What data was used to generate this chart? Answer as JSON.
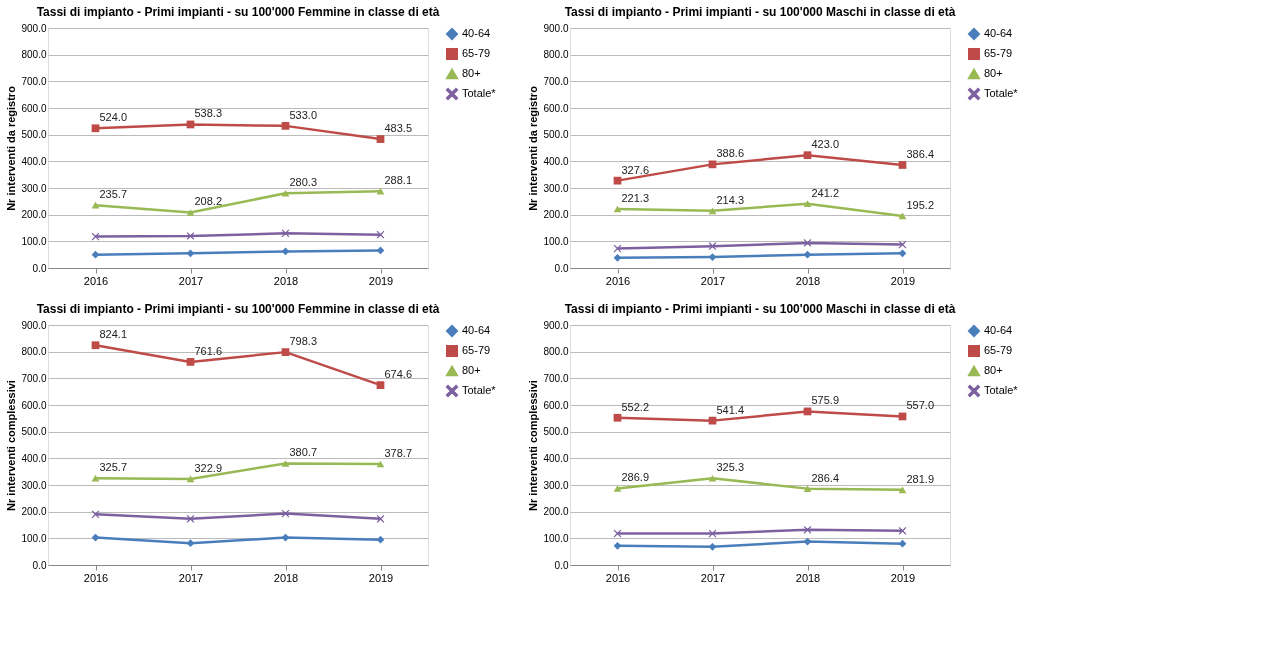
{
  "chart_data": [
    {
      "type": "line",
      "title": "Tassi di impianto - Primi impianti - su 100'000 Femmine in classe di età",
      "ylabel": "Nr interventi da registro",
      "categories": [
        "2016",
        "2017",
        "2018",
        "2019"
      ],
      "ylim": [
        0,
        900
      ],
      "yticks": [
        {
          "value": 0,
          "label": "0.0"
        },
        {
          "value": 100,
          "label": "100.0"
        },
        {
          "value": 200,
          "label": "200.0"
        },
        {
          "value": 300,
          "label": "300.0"
        },
        {
          "value": 400,
          "label": "400.0"
        },
        {
          "value": 500,
          "label": "500.0"
        },
        {
          "value": 600,
          "label": "600.0"
        },
        {
          "value": 700,
          "label": "700.0"
        },
        {
          "value": 800,
          "label": "800.0"
        },
        {
          "value": 900,
          "label": "900.0"
        }
      ],
      "grid": "y",
      "legend": "right",
      "series": [
        {
          "name": "40-64",
          "color": "#4a7ebb",
          "marker": "diamond",
          "values": [
            50,
            55,
            62,
            66
          ]
        },
        {
          "name": "65-79",
          "color": "#be4b48",
          "marker": "square",
          "values": [
            524.0,
            538.3,
            533.0,
            483.5
          ],
          "value_labels": [
            "524.0",
            "538.3",
            "533.0",
            "483.5"
          ]
        },
        {
          "name": "80+",
          "color": "#98b954",
          "marker": "triangle",
          "values": [
            235.7,
            208.2,
            280.3,
            288.1
          ],
          "value_labels": [
            "235.7",
            "208.2",
            "280.3",
            "288.1"
          ]
        },
        {
          "name": "Totale*",
          "color": "#7d60a0",
          "marker": "cross",
          "values": [
            118,
            120,
            130,
            125
          ]
        }
      ]
    },
    {
      "type": "line",
      "title": "Tassi di impianto - Primi impianti - su 100'000 Maschi in classe di età",
      "ylabel": "Nr interventi da registro",
      "categories": [
        "2016",
        "2017",
        "2018",
        "2019"
      ],
      "ylim": [
        0,
        900
      ],
      "yticks": [
        {
          "value": 0,
          "label": "0.0"
        },
        {
          "value": 100,
          "label": "100.0"
        },
        {
          "value": 200,
          "label": "200.0"
        },
        {
          "value": 300,
          "label": "300.0"
        },
        {
          "value": 400,
          "label": "400.0"
        },
        {
          "value": 500,
          "label": "500.0"
        },
        {
          "value": 600,
          "label": "600.0"
        },
        {
          "value": 700,
          "label": "700.0"
        },
        {
          "value": 800,
          "label": "800.0"
        },
        {
          "value": 900,
          "label": "900.0"
        }
      ],
      "grid": "y",
      "legend": "right",
      "series": [
        {
          "name": "40-64",
          "color": "#4a7ebb",
          "marker": "diamond",
          "values": [
            38,
            41,
            50,
            55
          ]
        },
        {
          "name": "65-79",
          "color": "#be4b48",
          "marker": "square",
          "values": [
            327.6,
            388.6,
            423.0,
            386.4
          ],
          "value_labels": [
            "327.6",
            "388.6",
            "423.0",
            "386.4"
          ]
        },
        {
          "name": "80+",
          "color": "#98b954",
          "marker": "triangle",
          "values": [
            221.3,
            214.3,
            241.2,
            195.2
          ],
          "value_labels": [
            "221.3",
            "214.3",
            "241.2",
            "195.2"
          ]
        },
        {
          "name": "Totale*",
          "color": "#7d60a0",
          "marker": "cross",
          "values": [
            73,
            82,
            94,
            88
          ]
        }
      ]
    },
    {
      "type": "line",
      "title": "Tassi di impianto - Primi impianti - su 100'000 Femmine in classe di età",
      "ylabel": "Nr interventi complessivi",
      "categories": [
        "2016",
        "2017",
        "2018",
        "2019"
      ],
      "ylim": [
        0,
        900
      ],
      "yticks": [
        {
          "value": 0,
          "label": "0.0"
        },
        {
          "value": 100,
          "label": "100.0"
        },
        {
          "value": 200,
          "label": "200.0"
        },
        {
          "value": 300,
          "label": "300.0"
        },
        {
          "value": 400,
          "label": "400.0"
        },
        {
          "value": 500,
          "label": "500.0"
        },
        {
          "value": 600,
          "label": "600.0"
        },
        {
          "value": 700,
          "label": "700.0"
        },
        {
          "value": 800,
          "label": "800.0"
        },
        {
          "value": 900,
          "label": "900.0"
        }
      ],
      "grid": "y",
      "legend": "right",
      "series": [
        {
          "name": "40-64",
          "color": "#4a7ebb",
          "marker": "diamond",
          "values": [
            103,
            82,
            103,
            95
          ]
        },
        {
          "name": "65-79",
          "color": "#be4b48",
          "marker": "square",
          "values": [
            824.1,
            761.6,
            798.3,
            674.6
          ],
          "value_labels": [
            "824.1",
            "761.6",
            "798.3",
            "674.6"
          ]
        },
        {
          "name": "80+",
          "color": "#98b954",
          "marker": "triangle",
          "values": [
            325.7,
            322.9,
            380.7,
            378.7
          ],
          "value_labels": [
            "325.7",
            "322.9",
            "380.7",
            "378.7"
          ]
        },
        {
          "name": "Totale*",
          "color": "#7d60a0",
          "marker": "cross",
          "values": [
            190,
            173,
            193,
            173
          ]
        }
      ]
    },
    {
      "type": "line",
      "title": "Tassi di impianto - Primi impianti - su 100'000 Maschi in classe di età",
      "ylabel": "Nr interventi complessivi",
      "categories": [
        "2016",
        "2017",
        "2018",
        "2019"
      ],
      "ylim": [
        0,
        900
      ],
      "yticks": [
        {
          "value": 0,
          "label": "0.0"
        },
        {
          "value": 100,
          "label": "100.0"
        },
        {
          "value": 200,
          "label": "200.0"
        },
        {
          "value": 300,
          "label": "300.0"
        },
        {
          "value": 400,
          "label": "400.0"
        },
        {
          "value": 500,
          "label": "500.0"
        },
        {
          "value": 600,
          "label": "600.0"
        },
        {
          "value": 700,
          "label": "700.0"
        },
        {
          "value": 800,
          "label": "800.0"
        },
        {
          "value": 900,
          "label": "900.0"
        }
      ],
      "grid": "y",
      "legend": "right",
      "series": [
        {
          "name": "40-64",
          "color": "#4a7ebb",
          "marker": "diamond",
          "values": [
            72,
            68,
            88,
            80
          ]
        },
        {
          "name": "65-79",
          "color": "#be4b48",
          "marker": "square",
          "values": [
            552.2,
            541.4,
            575.9,
            557.0
          ],
          "value_labels": [
            "552.2",
            "541.4",
            "575.9",
            "557.0"
          ]
        },
        {
          "name": "80+",
          "color": "#98b954",
          "marker": "triangle",
          "values": [
            286.9,
            325.3,
            286.4,
            281.9
          ],
          "value_labels": [
            "286.9",
            "325.3",
            "286.4",
            "281.9"
          ]
        },
        {
          "name": "Totale*",
          "color": "#7d60a0",
          "marker": "cross",
          "values": [
            118,
            118,
            132,
            128
          ]
        }
      ]
    }
  ]
}
